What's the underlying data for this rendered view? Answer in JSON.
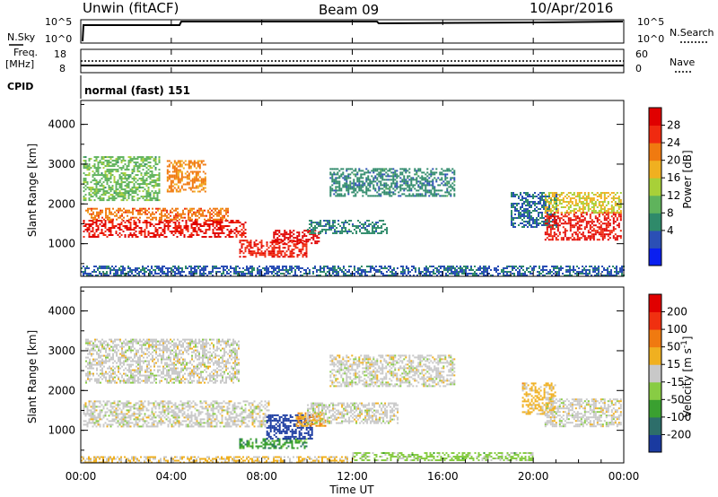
{
  "header": {
    "station": "Unwin (fitACF)",
    "beam": "Beam 09",
    "date": "10/Apr/2016"
  },
  "nsky_panel": {
    "left_label": "N.Sky",
    "left_ticks": [
      "10^5",
      "10^0"
    ],
    "right_ticks": [
      "10^5",
      "10^0"
    ],
    "right_label": "N.Search"
  },
  "freq_panel": {
    "left_label_1": "Freq.",
    "left_label_2": "[MHz]",
    "left_ticks": [
      "18",
      "8"
    ],
    "right_ticks": [
      "60",
      "0"
    ],
    "right_label": "Nave"
  },
  "cpid_panel": {
    "label": "CPID",
    "mode": "normal (fast) 151"
  },
  "power_panel": {
    "ylabel": "Slant Range [km]",
    "yticks": [
      "4000",
      "3000",
      "2000",
      "1000"
    ],
    "colorbar_label": "Power [dB]",
    "colorbar_ticks": [
      "28",
      "24",
      "20",
      "16",
      "12",
      "8",
      "4"
    ],
    "colors": [
      "#0a1ff0",
      "#2b4fb5",
      "#2f8a6a",
      "#5fb35c",
      "#a8d038",
      "#f0b020",
      "#f07a10",
      "#f02a10",
      "#e00000"
    ]
  },
  "velocity_panel": {
    "ylabel": "Slant Range [km]",
    "yticks": [
      "4000",
      "3000",
      "2000",
      "1000"
    ],
    "colorbar_label_main": "Velocity [m s",
    "colorbar_label_sup": "-1",
    "colorbar_label_end": "]",
    "colorbar_ticks": [
      "200",
      "100",
      "50",
      "15",
      "-15",
      "-50",
      "-100",
      "-200"
    ],
    "colors": [
      "#1a3aa0",
      "#2d6e6a",
      "#3aa030",
      "#88cc44",
      "#c8c8c8",
      "#f0b020",
      "#f07a10",
      "#f03010",
      "#e00000"
    ]
  },
  "x_axis": {
    "label": "Time UT",
    "ticks": [
      "00:00",
      "04:00",
      "08:00",
      "12:00",
      "16:00",
      "20:00",
      "00:00"
    ]
  },
  "chart_data": [
    {
      "type": "heatmap",
      "title": "Power [dB]",
      "xlabel": "Time UT",
      "ylabel": "Slant Range [km]",
      "xlim_hours": [
        0,
        24
      ],
      "ylim": [
        180,
        4600
      ],
      "clim": [
        0,
        30
      ],
      "regions": [
        {
          "t0": 0.1,
          "t1": 7.3,
          "r0": 1150,
          "r1": 1600,
          "value": 27
        },
        {
          "t0": 0.2,
          "t1": 6.5,
          "r0": 1600,
          "r1": 1900,
          "value": 22
        },
        {
          "t0": 0.1,
          "t1": 3.5,
          "r0": 2100,
          "r1": 3200,
          "value": 12
        },
        {
          "t0": 3.8,
          "t1": 5.5,
          "r0": 2300,
          "r1": 3100,
          "value": 21
        },
        {
          "t0": 7.0,
          "t1": 10.0,
          "r0": 650,
          "r1": 1100,
          "value": 26
        },
        {
          "t0": 8.5,
          "t1": 10.5,
          "r0": 1000,
          "r1": 1350,
          "value": 29
        },
        {
          "t0": 10.0,
          "t1": 13.5,
          "r0": 1250,
          "r1": 1600,
          "value": 8
        },
        {
          "t0": 11.0,
          "t1": 16.5,
          "r0": 2200,
          "r1": 2900,
          "value": 8
        },
        {
          "t0": 19.0,
          "t1": 21.0,
          "r0": 1400,
          "r1": 2300,
          "value": 7
        },
        {
          "t0": 20.5,
          "t1": 23.9,
          "r0": 1100,
          "r1": 1800,
          "value": 27
        },
        {
          "t0": 20.5,
          "t1": 23.9,
          "r0": 1800,
          "r1": 2300,
          "value": 17
        },
        {
          "t0": 0.0,
          "t1": 24.0,
          "r0": 200,
          "r1": 450,
          "value": 6
        }
      ]
    },
    {
      "type": "heatmap",
      "title": "Velocity [m s-1]",
      "xlabel": "Time UT",
      "ylabel": "Slant Range [km]",
      "xlim_hours": [
        0,
        24
      ],
      "ylim": [
        180,
        4600
      ],
      "clim": [
        -200,
        200
      ],
      "regions": [
        {
          "t0": 0.1,
          "t1": 8.3,
          "r0": 1100,
          "r1": 1750,
          "value": 0
        },
        {
          "t0": 0.2,
          "t1": 7.0,
          "r0": 2200,
          "r1": 3300,
          "value": 0
        },
        {
          "t0": 7.0,
          "t1": 10.0,
          "r0": 550,
          "r1": 800,
          "value": -90
        },
        {
          "t0": 8.2,
          "t1": 10.2,
          "r0": 800,
          "r1": 1400,
          "value": -200
        },
        {
          "t0": 9.5,
          "t1": 10.8,
          "r0": 1100,
          "r1": 1450,
          "value": 60
        },
        {
          "t0": 10.0,
          "t1": 14.0,
          "r0": 1200,
          "r1": 1700,
          "value": 0
        },
        {
          "t0": 11.0,
          "t1": 16.5,
          "r0": 2100,
          "r1": 2900,
          "value": 0
        },
        {
          "t0": 19.5,
          "t1": 21.0,
          "r0": 1400,
          "r1": 2200,
          "value": 40
        },
        {
          "t0": 20.5,
          "t1": 23.9,
          "r0": 1100,
          "r1": 1800,
          "value": 0
        },
        {
          "t0": 12.0,
          "t1": 20.0,
          "r0": 230,
          "r1": 450,
          "value": -40
        },
        {
          "t0": 0.0,
          "t1": 12.0,
          "r0": 200,
          "r1": 350,
          "value": 30
        }
      ]
    }
  ]
}
